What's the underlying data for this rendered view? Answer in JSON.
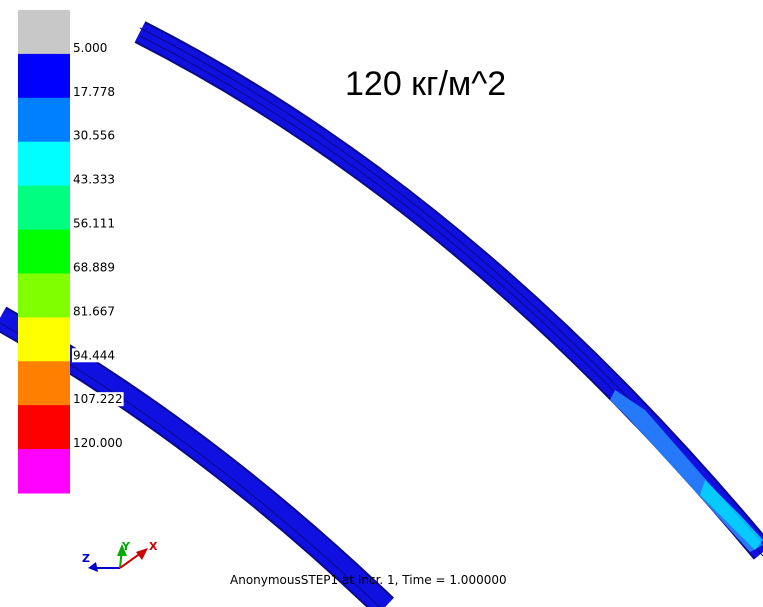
{
  "title": "120 кг/м^2",
  "footer": "AnonymousSTEP1 at Incr. 1, Time = 1.000000",
  "legend": {
    "labels": [
      "5.000",
      "17.778",
      "30.556",
      "43.333",
      "56.111",
      "68.889",
      "81.667",
      "94.444",
      "107.222",
      "120.000"
    ],
    "colors": [
      "#c8c8c8",
      "#0000ff",
      "#0080ff",
      "#00ffff",
      "#00ff80",
      "#00ff00",
      "#80ff00",
      "#ffff00",
      "#ff8000",
      "#ff0000",
      "#ff00ff"
    ]
  },
  "axes": {
    "z": "Z",
    "y": "Y",
    "x": "X"
  }
}
